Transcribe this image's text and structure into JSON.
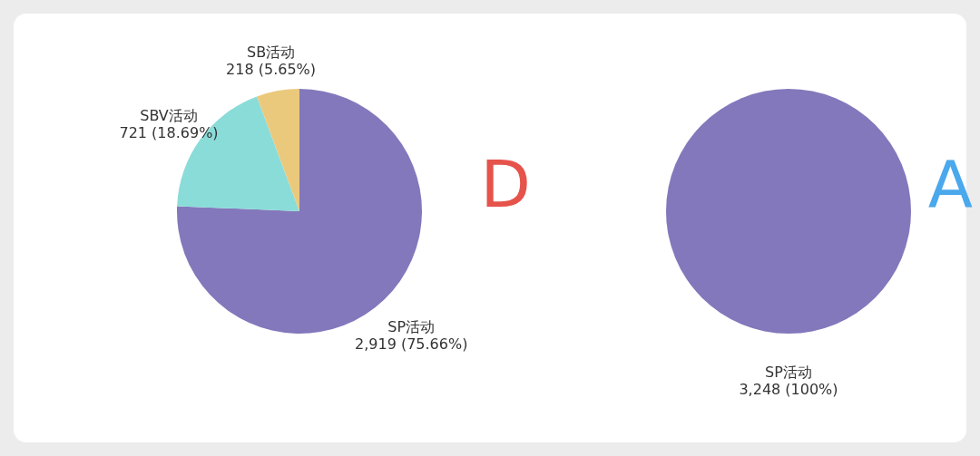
{
  "chart_data": [
    {
      "type": "pie",
      "title": "D",
      "categories": [
        "SP活动",
        "SBV活动",
        "SB活动"
      ],
      "values": [
        2919,
        721,
        218
      ],
      "colors": [
        "#8378bb",
        "#8adcd9",
        "#ebc97c"
      ],
      "value_labels": [
        "2,919 (75.66%)",
        "721 (18.69%)",
        "218 (5.65%)"
      ]
    },
    {
      "type": "pie",
      "title": "A",
      "categories": [
        "SP活动"
      ],
      "values": [
        3248
      ],
      "colors": [
        "#8378bb"
      ],
      "value_labels": [
        "3,248 (100%)"
      ]
    }
  ]
}
